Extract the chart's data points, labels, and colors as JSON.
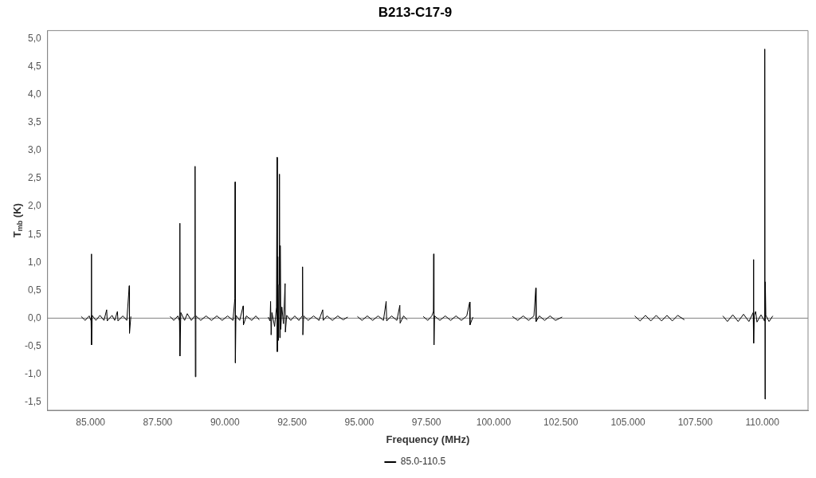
{
  "chart_data": {
    "type": "line",
    "title": "B213-C17-9",
    "xlabel": "Frequency (MHz)",
    "ylabel": "T$_{mb}$ (K)",
    "xlim": [
      83400,
      111700
    ],
    "ylim": [
      -1.65,
      5.15
    ],
    "xticks": [
      {
        "value": 85000,
        "label": "85.000"
      },
      {
        "value": 87500,
        "label": "87.500"
      },
      {
        "value": 90000,
        "label": "90.000"
      },
      {
        "value": 92500,
        "label": "92.500"
      },
      {
        "value": 95000,
        "label": "95.000"
      },
      {
        "value": 97500,
        "label": "97.500"
      },
      {
        "value": 100000,
        "label": "100.000"
      },
      {
        "value": 102500,
        "label": "102.500"
      },
      {
        "value": 105000,
        "label": "105.000"
      },
      {
        "value": 107500,
        "label": "107.500"
      },
      {
        "value": 110000,
        "label": "110.000"
      }
    ],
    "yticks": [
      {
        "value": -1.5,
        "label": "-1,5"
      },
      {
        "value": -1,
        "label": "-1,0"
      },
      {
        "value": -0.5,
        "label": "-0,5"
      },
      {
        "value": 0,
        "label": "0,0"
      },
      {
        "value": 0.5,
        "label": "0,5"
      },
      {
        "value": 1,
        "label": "1,0"
      },
      {
        "value": 1.5,
        "label": "1,5"
      },
      {
        "value": 2,
        "label": "2,0"
      },
      {
        "value": 2.5,
        "label": "2,5"
      },
      {
        "value": 3,
        "label": "3,0"
      },
      {
        "value": 3.5,
        "label": "3,5"
      },
      {
        "value": 4,
        "label": "4,0"
      },
      {
        "value": 4.5,
        "label": "4,5"
      },
      {
        "value": 5,
        "label": "5,0"
      }
    ],
    "grid": false,
    "legend": "bottom",
    "marker": "none",
    "line_style": "solid",
    "ref_lines": [
      {
        "axis": "y",
        "value": 0,
        "color": "#808080"
      }
    ],
    "series": [
      {
        "name": "85.0-110.5",
        "color": "#000000",
        "x": [
          84650,
          84800,
          84950,
          85020,
          85030,
          85040,
          85060,
          85200,
          85350,
          85500,
          85600,
          85620,
          85800,
          85900,
          86000,
          86020,
          86200,
          86350,
          86440,
          86450,
          86500,
          86600,
          87960,
          88100,
          88250,
          88310,
          88320,
          88330,
          88360,
          88500,
          88600,
          88750,
          88880,
          88890,
          88900,
          88920,
          89100,
          89300,
          89500,
          89700,
          89900,
          90100,
          90300,
          90370,
          90380,
          90390,
          90410,
          90550,
          90680,
          90690,
          90800,
          91000,
          91150,
          91280,
          91400,
          91610,
          91680,
          91700,
          91720,
          91750,
          91850,
          91920,
          91940,
          91950,
          91970,
          91990,
          92010,
          92030,
          92040,
          92060,
          92080,
          92120,
          92180,
          92240,
          92250,
          92300,
          92450,
          92600,
          92750,
          92880,
          92890,
          92900,
          92930,
          93100,
          93300,
          93500,
          93640,
          93660,
          93800,
          94000,
          94200,
          94400,
          94570,
          94700,
          94930,
          95100,
          95300,
          95500,
          95700,
          95900,
          96000,
          96020,
          96200,
          96400,
          96510,
          96520,
          96650,
          96780,
          96900,
          97380,
          97550,
          97700,
          97760,
          97770,
          97780,
          97800,
          98000,
          98200,
          98400,
          98600,
          98800,
          99000,
          99110,
          99120,
          99230,
          99500,
          100700,
          100900,
          101100,
          101300,
          101500,
          101570,
          101580,
          101700,
          101900,
          102100,
          102300,
          102550,
          103000,
          105250,
          105450,
          105650,
          105850,
          106050,
          106250,
          106450,
          106650,
          106850,
          107100,
          107500,
          108530,
          108700,
          108900,
          109100,
          109300,
          109500,
          109660,
          109670,
          109680,
          109700,
          109750,
          109800,
          109950,
          110080,
          110090,
          110100,
          110110,
          110130,
          110250,
          110390
        ],
        "values": [
          0.03,
          -0.04,
          0.04,
          -0.05,
          1.15,
          -0.48,
          0.05,
          -0.04,
          0.05,
          -0.04,
          0.15,
          -0.05,
          0.05,
          -0.04,
          0.12,
          -0.05,
          0.04,
          -0.04,
          0.58,
          -0.27,
          0.03,
          null,
          0.03,
          -0.04,
          0.04,
          -0.05,
          1.7,
          -0.68,
          0.1,
          -0.04,
          0.08,
          -0.04,
          0.04,
          2.72,
          -1.05,
          0.04,
          -0.04,
          0.04,
          -0.04,
          0.04,
          -0.04,
          0.04,
          -0.04,
          0.35,
          2.44,
          -0.8,
          0.05,
          -0.04,
          0.22,
          -0.12,
          0.04,
          -0.04,
          0.04,
          -0.03,
          null,
          0.02,
          -0.05,
          0.3,
          -0.3,
          0.1,
          -0.15,
          0.2,
          2.88,
          -0.6,
          1.1,
          -0.4,
          0.6,
          2.58,
          -0.35,
          1.3,
          -0.2,
          0.2,
          -0.1,
          0.62,
          -0.25,
          0.05,
          -0.04,
          0.04,
          -0.04,
          0.04,
          0.92,
          -0.3,
          0.04,
          -0.04,
          0.04,
          -0.04,
          0.15,
          -0.04,
          0.04,
          -0.04,
          0.04,
          -0.03,
          0.02,
          null,
          0.03,
          -0.04,
          0.04,
          -0.04,
          0.04,
          -0.04,
          0.3,
          -0.05,
          0.04,
          -0.04,
          0.23,
          -0.09,
          0.04,
          -0.03,
          null,
          0.03,
          -0.04,
          0.04,
          0.12,
          1.15,
          -0.48,
          0.04,
          -0.04,
          0.04,
          -0.04,
          0.04,
          -0.04,
          0.04,
          0.29,
          -0.12,
          0.02,
          null,
          0.03,
          -0.04,
          0.04,
          -0.04,
          0.04,
          0.54,
          -0.06,
          0.04,
          -0.04,
          0.04,
          -0.04,
          0.02,
          null,
          0.04,
          -0.05,
          0.05,
          -0.05,
          0.05,
          -0.05,
          0.05,
          -0.05,
          0.05,
          -0.03,
          null,
          0.04,
          -0.06,
          0.06,
          -0.06,
          0.07,
          -0.06,
          0.1,
          1.05,
          -0.45,
          0.05,
          0.12,
          -0.07,
          0.06,
          -0.05,
          4.82,
          -1.45,
          0.65,
          0.05,
          -0.06,
          0.04
        ]
      }
    ]
  }
}
